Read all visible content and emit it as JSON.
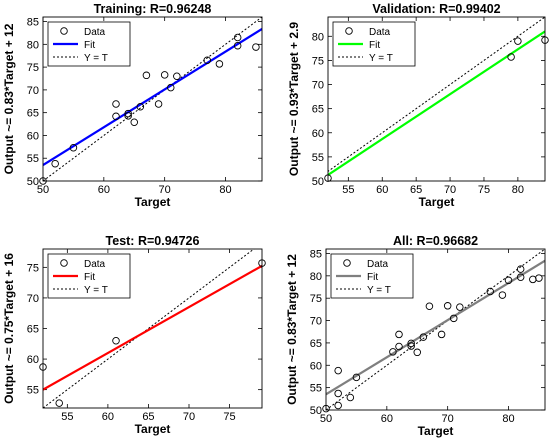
{
  "chart_data": [
    {
      "type": "scatter",
      "title": "Training: R=0.96248",
      "xlabel": "Target",
      "ylabel": "Output ~= 0.83*Target + 12",
      "xlim": [
        50,
        86
      ],
      "ylim": [
        50,
        86
      ],
      "xticks": [
        50,
        60,
        70,
        80
      ],
      "yticks": [
        50,
        55,
        60,
        65,
        70,
        75,
        80,
        85
      ],
      "legend": {
        "placement": "top-left",
        "entries": [
          "Data",
          "Fit",
          "Y = T"
        ]
      },
      "fit": {
        "slope": 0.83,
        "intercept": 12,
        "color": "#0000ff"
      },
      "points": [
        [
          50,
          50
        ],
        [
          52,
          53.8
        ],
        [
          55,
          57.3
        ],
        [
          62,
          66.9
        ],
        [
          62,
          64.2
        ],
        [
          64,
          64.8
        ],
        [
          64,
          64.3
        ],
        [
          65,
          62.9
        ],
        [
          66,
          66.3
        ],
        [
          67,
          73.2
        ],
        [
          69,
          66.9
        ],
        [
          70,
          73.3
        ],
        [
          71,
          70.5
        ],
        [
          72,
          73
        ],
        [
          77,
          76.5
        ],
        [
          79,
          75.7
        ],
        [
          82,
          79.7
        ],
        [
          82,
          81.5
        ],
        [
          85,
          79.4
        ]
      ]
    },
    {
      "type": "scatter",
      "title": "Validation: R=0.99402",
      "xlabel": "Target",
      "ylabel": "Output ~= 0.93*Target + 2.9",
      "xlim": [
        52,
        84
      ],
      "ylim": [
        50,
        84
      ],
      "xticks": [
        55,
        60,
        65,
        70,
        75,
        80
      ],
      "yticks": [
        50,
        55,
        60,
        65,
        70,
        75,
        80
      ],
      "legend": {
        "placement": "top-left",
        "entries": [
          "Data",
          "Fit",
          "Y = T"
        ]
      },
      "fit": {
        "slope": 0.93,
        "intercept": 2.9,
        "color": "#00ff00"
      },
      "points": [
        [
          52,
          50.6
        ],
        [
          79,
          75.7
        ],
        [
          80,
          79
        ],
        [
          84,
          79.2
        ]
      ]
    },
    {
      "type": "scatter",
      "title": "Test: R=0.94726",
      "xlabel": "Target",
      "ylabel": "Output ~= 0.75*Target + 16",
      "xlim": [
        52,
        79
      ],
      "ylim": [
        52,
        78
      ],
      "xticks": [
        55,
        60,
        65,
        70,
        75
      ],
      "yticks": [
        55,
        60,
        65,
        70,
        75
      ],
      "legend": {
        "placement": "top-left",
        "entries": [
          "Data",
          "Fit",
          "Y = T"
        ]
      },
      "fit": {
        "slope": 0.75,
        "intercept": 16,
        "color": "#ff0000"
      },
      "points": [
        [
          52,
          58.7
        ],
        [
          54,
          52.8
        ],
        [
          61,
          63
        ],
        [
          79,
          75.7
        ]
      ]
    },
    {
      "type": "scatter",
      "title": "All: R=0.96682",
      "xlabel": "Target",
      "ylabel": "Output ~= 0.83*Target + 12",
      "xlim": [
        50,
        86
      ],
      "ylim": [
        50,
        86
      ],
      "xticks": [
        50,
        60,
        70,
        80
      ],
      "yticks": [
        50,
        55,
        60,
        65,
        70,
        75,
        80,
        85
      ],
      "legend": {
        "placement": "top-left",
        "entries": [
          "Data",
          "Fit",
          "Y = T"
        ]
      },
      "fit": {
        "slope": 0.83,
        "intercept": 12,
        "color": "#7f7f7f"
      },
      "points": [
        [
          50,
          50.3
        ],
        [
          52,
          51
        ],
        [
          52,
          53.7
        ],
        [
          52,
          58.8
        ],
        [
          54,
          52.8
        ],
        [
          55,
          57.3
        ],
        [
          61,
          63
        ],
        [
          62,
          66.9
        ],
        [
          62,
          64.2
        ],
        [
          64,
          64.9
        ],
        [
          64,
          64.3
        ],
        [
          65,
          62.9
        ],
        [
          66,
          66.3
        ],
        [
          67,
          73.2
        ],
        [
          69,
          66.9
        ],
        [
          70,
          73.3
        ],
        [
          71,
          70.5
        ],
        [
          72,
          73
        ],
        [
          77,
          76.5
        ],
        [
          79,
          75.7
        ],
        [
          80,
          79
        ],
        [
          82,
          79.7
        ],
        [
          82,
          81.5
        ],
        [
          84,
          79.2
        ],
        [
          85,
          79.5
        ]
      ]
    }
  ]
}
